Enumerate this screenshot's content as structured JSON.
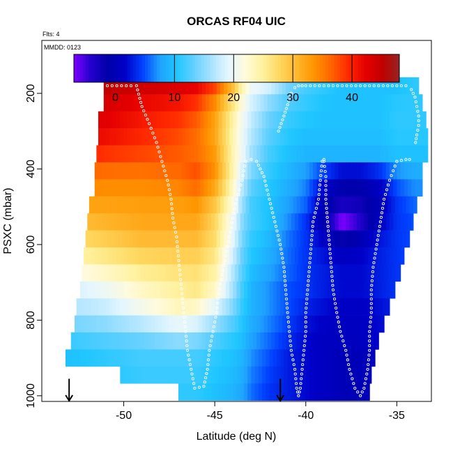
{
  "chart_data": {
    "type": "heatmap",
    "title": "ORCAS RF04 UIC",
    "top_left_notes": [
      "Flts: 4",
      "MMDD: 0123"
    ],
    "xlabel": "Latitude (deg N)",
    "ylabel": "PSXC (mbar)",
    "xlim": [
      -54.5,
      -33.1
    ],
    "ylim": [
      1015,
      60
    ],
    "y_reversed": true,
    "x_ticks": [
      -50,
      -45,
      -40,
      -35
    ],
    "x_tick_labels": [
      "-50",
      "-45",
      "-40",
      "-35"
    ],
    "y_ticks": [
      200,
      400,
      600,
      800,
      1000
    ],
    "y_tick_labels": [
      "200",
      "400",
      "600",
      "800",
      "1000"
    ],
    "colorbar": {
      "range": [
        -7,
        48
      ],
      "ticks": [
        0,
        10,
        20,
        30,
        40
      ],
      "tick_labels": [
        "0",
        "10",
        "20",
        "30",
        "40"
      ],
      "tick_lines": [
        10,
        20,
        30,
        40
      ],
      "colors": [
        "#7f00ff",
        "#2200cc",
        "#0000aa",
        "#0000c8",
        "#0040ff",
        "#1fa0ff",
        "#1fc6ff",
        "#63d0ff",
        "#a8e2ff",
        "#e4f6ff",
        "#fffadc",
        "#fff2a0",
        "#ffd860",
        "#ffb830",
        "#ff9500",
        "#ff6600",
        "#ff2a00",
        "#e60000",
        "#c00000",
        "#962424"
      ]
    },
    "field_rows": [
      {
        "p": 180,
        "lat_min": -51.1,
        "lat_max": -33.8
      },
      {
        "p": 225,
        "lat_min": -51.1,
        "lat_max": -33.6
      },
      {
        "p": 270,
        "lat_min": -51.4,
        "lat_max": -33.4
      },
      {
        "p": 315,
        "lat_min": -51.4,
        "lat_max": -33.3
      },
      {
        "p": 360,
        "lat_min": -51.5,
        "lat_max": -33.3
      },
      {
        "p": 405,
        "lat_min": -51.6,
        "lat_max": -33.6
      },
      {
        "p": 450,
        "lat_min": -51.6,
        "lat_max": -33.6
      },
      {
        "p": 495,
        "lat_min": -51.9,
        "lat_max": -33.9
      },
      {
        "p": 540,
        "lat_min": -52.0,
        "lat_max": -34.1
      },
      {
        "p": 585,
        "lat_min": -52.1,
        "lat_max": -34.3
      },
      {
        "p": 630,
        "lat_min": -52.2,
        "lat_max": -34.6
      },
      {
        "p": 675,
        "lat_min": -52.3,
        "lat_max": -34.8
      },
      {
        "p": 720,
        "lat_min": -52.4,
        "lat_max": -35.1
      },
      {
        "p": 765,
        "lat_min": -52.6,
        "lat_max": -35.4
      },
      {
        "p": 810,
        "lat_min": -52.7,
        "lat_max": -35.7
      },
      {
        "p": 855,
        "lat_min": -52.9,
        "lat_max": -36.0
      },
      {
        "p": 900,
        "lat_min": -53.2,
        "lat_max": -36.2
      },
      {
        "p": 945,
        "lat_min": -50.2,
        "lat_max": -36.4
      },
      {
        "p": 990,
        "lat_min": -47.0,
        "lat_max": -36.5
      }
    ],
    "field_anchors": {
      "lat": [
        -53,
        -51,
        -49,
        -47,
        -46,
        -45,
        -44,
        -43.5,
        -43,
        -42,
        -41,
        -40,
        -39,
        -38,
        -37,
        -36,
        -35,
        -34
      ],
      "rows": [
        {
          "p": 180,
          "v": [
            45,
            45,
            44,
            43,
            42,
            38,
            30,
            24,
            20,
            18,
            14,
            12,
            11,
            10,
            10,
            10,
            10,
            11
          ]
        },
        {
          "p": 240,
          "v": [
            44,
            43,
            41,
            40,
            38,
            33,
            25,
            21,
            18,
            14,
            12,
            11,
            10,
            10,
            10,
            10,
            11,
            11
          ]
        },
        {
          "p": 300,
          "v": [
            43,
            42,
            40,
            38,
            36,
            32,
            24,
            20,
            17,
            13,
            11,
            10,
            10,
            10,
            10,
            10,
            11,
            11
          ]
        },
        {
          "p": 360,
          "v": [
            40,
            39,
            38,
            37,
            36,
            33,
            24,
            20,
            16,
            12,
            10,
            9,
            9,
            9,
            9,
            9,
            10,
            10
          ]
        },
        {
          "p": 420,
          "v": [
            36,
            35,
            35,
            36,
            38,
            34,
            24,
            18,
            14,
            11,
            9,
            7,
            3,
            0,
            0,
            2,
            6,
            8
          ]
        },
        {
          "p": 480,
          "v": [
            33,
            33,
            33,
            33,
            34,
            30,
            22,
            16,
            12,
            10,
            8,
            6,
            0,
            -2,
            -2,
            0,
            4,
            6
          ]
        },
        {
          "p": 540,
          "v": [
            30,
            31,
            32,
            32,
            32,
            28,
            20,
            15,
            12,
            10,
            7,
            4,
            -1,
            -7,
            -4,
            1,
            4,
            5
          ]
        },
        {
          "p": 600,
          "v": [
            26,
            28,
            30,
            30,
            30,
            27,
            19,
            14,
            11,
            9,
            6,
            4,
            2,
            0,
            1,
            3,
            4,
            5
          ]
        },
        {
          "p": 660,
          "v": [
            22,
            24,
            26,
            27,
            27,
            25,
            17,
            13,
            10,
            8,
            6,
            4,
            3,
            2,
            2,
            3,
            4,
            5
          ]
        },
        {
          "p": 720,
          "v": [
            18,
            20,
            23,
            25,
            26,
            23,
            16,
            12,
            9,
            7,
            5,
            4,
            3,
            2,
            2,
            3,
            4,
            5
          ]
        },
        {
          "p": 780,
          "v": [
            16,
            17,
            20,
            23,
            22,
            18,
            14,
            11,
            9,
            7,
            5,
            3,
            2,
            1,
            1,
            2,
            3,
            4
          ]
        },
        {
          "p": 840,
          "v": [
            12,
            13,
            14,
            16,
            15,
            13,
            11,
            10,
            8,
            6,
            4,
            2,
            1,
            1,
            1,
            2,
            3,
            4
          ]
        },
        {
          "p": 900,
          "v": [
            10,
            11,
            12,
            12,
            12,
            11,
            10,
            9,
            7,
            5,
            3,
            2,
            1,
            0,
            0,
            1,
            2,
            3
          ]
        },
        {
          "p": 990,
          "v": [
            10,
            10,
            11,
            11,
            11,
            10,
            9,
            8,
            6,
            4,
            3,
            2,
            1,
            0,
            0,
            1,
            2,
            3
          ]
        }
      ]
    },
    "flight_track": {
      "color": "#ffffff",
      "lat": [
        -50.9,
        -49.6,
        -49.3,
        -49.0,
        -48.6,
        -48.2,
        -47.9,
        -47.6,
        -47.4,
        -47.3,
        -47.1,
        -47.0,
        -46.9,
        -46.8,
        -46.7,
        -46.6,
        -46.5,
        -46.3,
        -46.1,
        -45.6,
        -45.4,
        -45.3,
        -45.1,
        -44.9,
        -44.8,
        -44.6,
        -44.4,
        -44.2,
        -44.0,
        -43.8,
        -43.5,
        -43.3,
        -43.0,
        -42.7,
        -42.3,
        -42.0,
        -41.7,
        -41.4,
        -41.2,
        -41.1,
        -41.0,
        -40.9,
        -40.8,
        -40.6,
        -40.5,
        -40.4,
        -40.3,
        -40.2,
        -40.1,
        -40.0,
        -40.0,
        -39.9,
        -39.8,
        -39.7,
        -39.6,
        -39.3,
        -39.2,
        -39.1,
        -39.0,
        -39.0,
        -38.9,
        -38.9,
        -38.8,
        -38.7,
        -38.6,
        -38.5,
        -38.3,
        -38.1,
        -37.8,
        -37.6,
        -37.3,
        -37.0,
        -36.8,
        -36.6,
        -36.5,
        -36.5,
        -36.4,
        -36.4,
        -36.3,
        -36.1,
        -35.9,
        -35.7,
        -35.4,
        -35.0,
        -34.5,
        -34.1
      ],
      "p": [
        180,
        180,
        180,
        235,
        280,
        330,
        380,
        430,
        480,
        530,
        580,
        630,
        680,
        730,
        780,
        830,
        880,
        930,
        980,
        975,
        930,
        880,
        830,
        780,
        730,
        680,
        630,
        580,
        530,
        480,
        430,
        380,
        375,
        380,
        420,
        480,
        540,
        600,
        660,
        720,
        780,
        830,
        880,
        930,
        980,
        1000,
        980,
        930,
        880,
        830,
        780,
        720,
        660,
        600,
        540,
        480,
        430,
        380,
        375,
        380,
        420,
        480,
        540,
        600,
        660,
        720,
        780,
        830,
        880,
        930,
        980,
        1000,
        980,
        930,
        880,
        830,
        780,
        720,
        660,
        600,
        540,
        480,
        430,
        380,
        375,
        375
      ]
    },
    "flight_track_upper": {
      "lat": [
        -41.5,
        -41.2,
        -41.0,
        -40.8,
        -40.6,
        -40.4,
        -40.2,
        -40.0,
        -38.0,
        -36.0,
        -34.5,
        -34.2,
        -34.0,
        -33.9,
        -33.8,
        -33.8,
        -33.9,
        -34.0
      ],
      "p": [
        300,
        260,
        230,
        200,
        185,
        180,
        180,
        180,
        180,
        180,
        180,
        190,
        210,
        235,
        260,
        285,
        310,
        340
      ]
    },
    "markers": {
      "label": "",
      "lat": [
        -53.0,
        -41.4
      ],
      "p_top": 955,
      "p_bottom": 1015
    }
  }
}
